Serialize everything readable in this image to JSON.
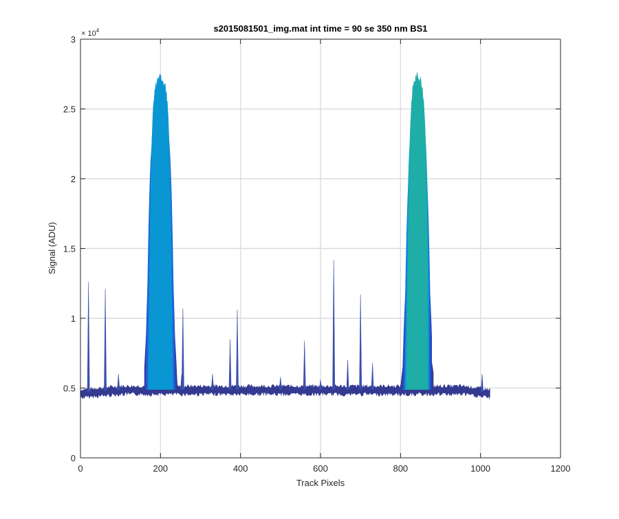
{
  "chart_data": {
    "type": "area",
    "title": "s2015081501_img.mat int time = 90 se  350 nm BS1",
    "xlabel": "Track Pixels",
    "ylabel": "Signal (ADU)",
    "y_exponent_label": "× 10",
    "y_exponent": "4",
    "xlim": [
      0,
      1200
    ],
    "ylim": [
      0,
      30000
    ],
    "xticks": [
      0,
      200,
      400,
      600,
      800,
      1000,
      1200
    ],
    "yticks": [
      0,
      5000,
      10000,
      15000,
      20000,
      25000,
      30000
    ],
    "ytick_labels": [
      "0",
      "0.5",
      "1",
      "1.5",
      "2",
      "2.5",
      "3"
    ],
    "grid": true,
    "baseline": 4900,
    "x_extent": [
      0,
      1024
    ],
    "colors": [
      "#343a8f",
      "#2f43b6",
      "#1a66de",
      "#0a96d2",
      "#1fada8"
    ],
    "series": [
      {
        "peaks": [
          {
            "x": [
              160,
              245
            ],
            "center": 200,
            "max": 12200
          },
          {
            "x": [
              795,
              882
            ],
            "center": 843,
            "max": 8200
          }
        ]
      },
      {
        "peaks": [
          {
            "x": [
              162,
              240
            ],
            "center": 200,
            "max": 18000
          },
          {
            "x": [
              800,
              878
            ],
            "center": 843,
            "max": 15500
          }
        ]
      },
      {
        "peaks": [
          {
            "x": [
              165,
              237
            ],
            "center": 200,
            "max": 25000
          },
          {
            "x": [
              805,
              874
            ],
            "center": 843,
            "max": 23000
          }
        ]
      },
      {
        "peaks": [
          {
            "x": [
              170,
              232
            ],
            "center": 200,
            "max": 27200
          },
          {
            "x": [
              808,
              871
            ],
            "center": 843,
            "max": 25500
          }
        ]
      },
      {
        "peaks": [
          {
            "x": [
              812,
              868
            ],
            "center": 843,
            "max": 27300
          }
        ]
      }
    ],
    "spikes": [
      {
        "x": 20,
        "y": 12600
      },
      {
        "x": 62,
        "y": 12100
      },
      {
        "x": 95,
        "y": 6000
      },
      {
        "x": 253,
        "y": 6000
      },
      {
        "x": 256,
        "y": 10700
      },
      {
        "x": 330,
        "y": 6000
      },
      {
        "x": 374,
        "y": 8500
      },
      {
        "x": 392,
        "y": 10600
      },
      {
        "x": 500,
        "y": 5800
      },
      {
        "x": 560,
        "y": 8400
      },
      {
        "x": 600,
        "y": 5600
      },
      {
        "x": 633,
        "y": 14200
      },
      {
        "x": 668,
        "y": 7000
      },
      {
        "x": 700,
        "y": 11700
      },
      {
        "x": 730,
        "y": 6800
      },
      {
        "x": 1004,
        "y": 6000
      }
    ]
  }
}
